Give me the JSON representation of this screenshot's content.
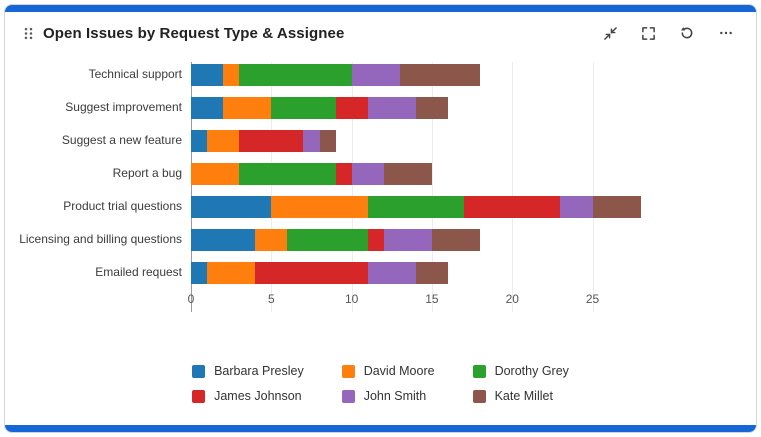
{
  "card": {
    "accent_color": "#1766d8"
  },
  "header": {
    "title": "Open Issues by Request Type & Assignee",
    "icons": [
      "drag-handle-icon",
      "collapse-icon",
      "fullscreen-icon",
      "refresh-icon",
      "more-icon"
    ]
  },
  "chart_data": {
    "type": "bar",
    "orientation": "horizontal",
    "stacked": true,
    "title": "Open Issues by Request Type & Assignee",
    "categories": [
      "Technical support",
      "Suggest improvement",
      "Suggest a new feature",
      "Report a bug",
      "Product trial questions",
      "Licensing and billing questions",
      "Emailed request"
    ],
    "series": [
      {
        "name": "Barbara Presley",
        "color": "#1f77b4",
        "values": [
          2,
          2,
          1,
          0,
          5,
          4,
          1
        ]
      },
      {
        "name": "David Moore",
        "color": "#ff7f0e",
        "values": [
          1,
          3,
          2,
          3,
          6,
          2,
          3
        ]
      },
      {
        "name": "Dorothy Grey",
        "color": "#2ca02c",
        "values": [
          7,
          4,
          0,
          6,
          6,
          5,
          0
        ]
      },
      {
        "name": "James Johnson",
        "color": "#d62728",
        "values": [
          0,
          2,
          4,
          1,
          6,
          1,
          7
        ]
      },
      {
        "name": "John Smith",
        "color": "#9467bd",
        "values": [
          3,
          3,
          1,
          2,
          2,
          3,
          3
        ]
      },
      {
        "name": "Kate Millet",
        "color": "#8c564b",
        "values": [
          5,
          2,
          1,
          3,
          3,
          3,
          2
        ]
      }
    ],
    "xticks": [
      0,
      5,
      10,
      15,
      20,
      25
    ],
    "xmax": 28.7,
    "grid": true,
    "legend_position": "bottom"
  }
}
